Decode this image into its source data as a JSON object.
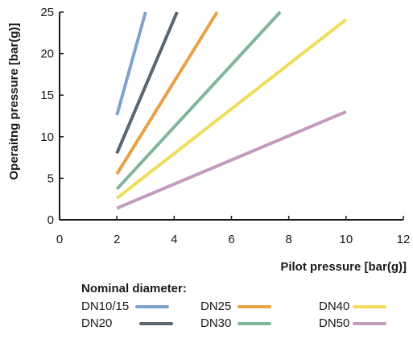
{
  "chart_data": {
    "type": "line",
    "xlabel": "Pilot pressure [bar(g)]",
    "ylabel": "Operaitng pressure [bar(g)]",
    "xlim": [
      0,
      12
    ],
    "ylim": [
      0,
      25
    ],
    "xticks": [
      "0",
      "2",
      "4",
      "6",
      "8",
      "10",
      "12"
    ],
    "yticks": [
      "0",
      "5",
      "10",
      "15",
      "20",
      "25"
    ],
    "grid": false,
    "legend_title": "Nominal diameter:",
    "legend_position": "bottom",
    "series": [
      {
        "name": "DN10/15",
        "color": "#7fa3cc",
        "x": [
          2,
          3.0
        ],
        "y": [
          12.6,
          25
        ]
      },
      {
        "name": "DN20",
        "color": "#5b6670",
        "x": [
          2,
          4.1
        ],
        "y": [
          8.0,
          25
        ]
      },
      {
        "name": "DN25",
        "color": "#e9a144",
        "x": [
          2,
          5.5
        ],
        "y": [
          5.5,
          25
        ]
      },
      {
        "name": "DN30",
        "color": "#7fb59a",
        "x": [
          2,
          7.7
        ],
        "y": [
          3.7,
          25
        ]
      },
      {
        "name": "DN40",
        "color": "#f1dc5c",
        "x": [
          2,
          10
        ],
        "y": [
          2.6,
          24.1
        ]
      },
      {
        "name": "DN50",
        "color": "#c49bbd",
        "x": [
          2,
          10
        ],
        "y": [
          1.4,
          13.0
        ]
      }
    ]
  }
}
